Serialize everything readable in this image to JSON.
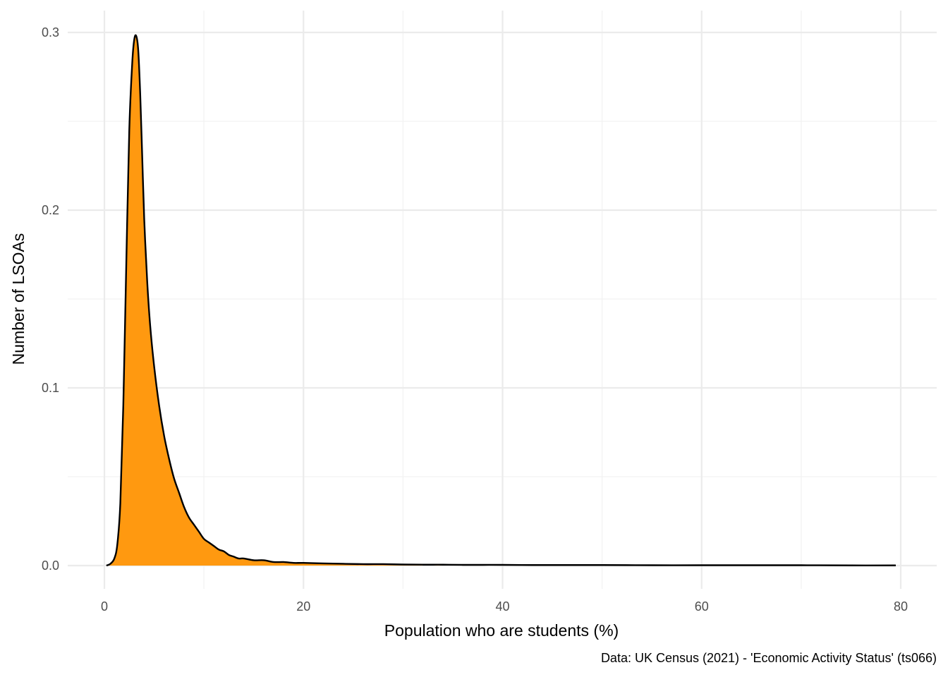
{
  "chart_data": {
    "type": "area",
    "subtype": "density",
    "title": "",
    "xlabel": "Population who are students (%)",
    "ylabel": "Number of LSOAs",
    "caption": "Data: UK Census (2021) - 'Economic Activity Status' (ts066)",
    "xlim": [
      0,
      80
    ],
    "ylim": [
      0,
      0.3
    ],
    "x_ticks": [
      0,
      20,
      40,
      60,
      80
    ],
    "x_tick_labels": [
      "0",
      "20",
      "40",
      "60",
      "80"
    ],
    "y_ticks": [
      0.0,
      0.1,
      0.2,
      0.3
    ],
    "y_tick_labels": [
      "0.0",
      "0.1",
      "0.2",
      "0.3"
    ],
    "grid": true,
    "legend": "none",
    "colors": {
      "fill": "#ff9910",
      "line": "#000000"
    },
    "series": [
      {
        "x": [
          0.2,
          0.6,
          1.0,
          1.3,
          1.6,
          1.9,
          2.2,
          2.5,
          2.8,
          3.0,
          3.2,
          3.4,
          3.6,
          3.8,
          4.0,
          4.3,
          4.6,
          5.0,
          5.5,
          6.0,
          6.5,
          7.0,
          7.5,
          8.0,
          8.5,
          9.0,
          9.5,
          10.0,
          10.5,
          11.0,
          11.5,
          12.0,
          12.5,
          13.0,
          13.5,
          14.0,
          15.0,
          16.0,
          17.0,
          18.0,
          19.0,
          20.0,
          22.0,
          24.0,
          26.0,
          28.0,
          30.0,
          32.0,
          34.0,
          36.0,
          38.0,
          40.0,
          43.0,
          46.0,
          50.0,
          55.0,
          60.0,
          65.0,
          70.0,
          75.0,
          79.5
        ],
        "y": [
          0.0,
          0.001,
          0.004,
          0.012,
          0.035,
          0.09,
          0.17,
          0.245,
          0.283,
          0.296,
          0.298,
          0.29,
          0.265,
          0.23,
          0.195,
          0.16,
          0.135,
          0.112,
          0.09,
          0.073,
          0.06,
          0.049,
          0.041,
          0.033,
          0.027,
          0.023,
          0.019,
          0.015,
          0.013,
          0.011,
          0.009,
          0.008,
          0.006,
          0.005,
          0.004,
          0.004,
          0.003,
          0.003,
          0.002,
          0.002,
          0.0015,
          0.0015,
          0.0012,
          0.001,
          0.0008,
          0.0008,
          0.0006,
          0.0005,
          0.0005,
          0.0004,
          0.0004,
          0.0004,
          0.0003,
          0.0003,
          0.0003,
          0.0002,
          0.0002,
          0.0002,
          0.0002,
          0.0001,
          0.0001
        ]
      }
    ]
  }
}
